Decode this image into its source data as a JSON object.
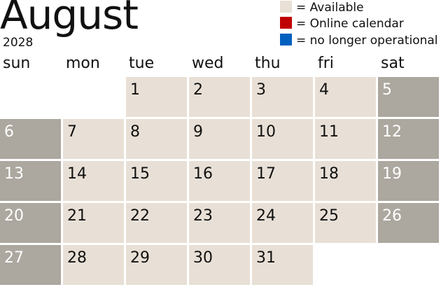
{
  "header": {
    "month": "August",
    "year": "2028"
  },
  "legend": [
    {
      "color": "#e8e0d6",
      "label": "= Available"
    },
    {
      "color": "#c00000",
      "label": "= Online calendar"
    },
    {
      "color": "#0060c0",
      "label": "= no longer operational"
    }
  ],
  "weekdays": [
    "sun",
    "mon",
    "tue",
    "wed",
    "thu",
    "fri",
    "sat"
  ],
  "colors": {
    "available": "#e8e0d6",
    "weekend": "#aca79f"
  },
  "first_weekday_index": 2,
  "days": [
    "1",
    "2",
    "3",
    "4",
    "5",
    "6",
    "7",
    "8",
    "9",
    "10",
    "11",
    "12",
    "13",
    "14",
    "15",
    "16",
    "17",
    "18",
    "19",
    "20",
    "21",
    "22",
    "23",
    "24",
    "25",
    "26",
    "27",
    "28",
    "29",
    "30",
    "31"
  ]
}
